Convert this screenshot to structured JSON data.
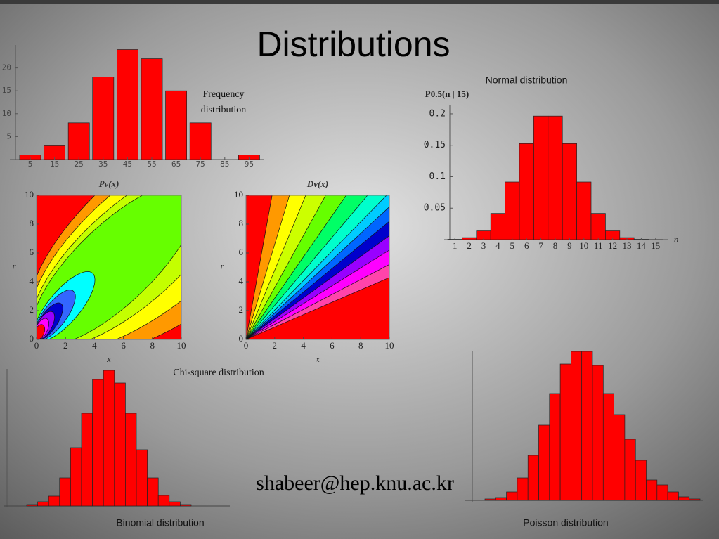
{
  "title": "Distributions",
  "email": "shabeer@hep.knu.ac.kr",
  "caption": "Chi-square distribution",
  "chart_data": [
    {
      "type": "bar",
      "annotation": "Frequency distribution",
      "categories": [
        "5",
        "15",
        "25",
        "35",
        "45",
        "55",
        "65",
        "75",
        "85",
        "95"
      ],
      "values": [
        1,
        3,
        8,
        18,
        24,
        22,
        15,
        8,
        0,
        1
      ],
      "color": "#ff0000",
      "ylim": [
        0,
        25
      ],
      "yticks": [
        5,
        10,
        15,
        20
      ]
    },
    {
      "type": "bar",
      "title": "Normal distribution",
      "ylabel": "P0.5(n | 15)",
      "xlabel": "n",
      "categories": [
        "1",
        "2",
        "3",
        "4",
        "5",
        "6",
        "7",
        "8",
        "9",
        "10",
        "11",
        "12",
        "13",
        "14",
        "15"
      ],
      "values": [
        0.0005,
        0.0032,
        0.0139,
        0.0417,
        0.0916,
        0.1527,
        0.1964,
        0.1964,
        0.1527,
        0.0916,
        0.0417,
        0.0139,
        0.0032,
        0.0005,
        3e-05
      ],
      "color": "#ff0000",
      "ylim": [
        0,
        0.21
      ],
      "yticks": [
        0.05,
        0.1,
        0.15,
        0.2
      ]
    },
    {
      "type": "contour",
      "title": "Pν(x)",
      "xlabel": "x",
      "ylabel": "r",
      "xlim": [
        0,
        10
      ],
      "ylim": [
        0,
        10
      ],
      "xticks": [
        0,
        2,
        4,
        6,
        8,
        10
      ],
      "yticks": [
        0,
        2,
        4,
        6,
        8,
        10
      ],
      "colors": [
        "#ff0000",
        "#ff9900",
        "#ffff00",
        "#c4ff00",
        "#66ff00",
        "#00ffff",
        "#3366ff",
        "#0000cc",
        "#9900ff",
        "#ff00ff",
        "#ff0000"
      ]
    },
    {
      "type": "contour",
      "title": "Dν(x)",
      "xlabel": "x",
      "ylabel": "r",
      "xlim": [
        0,
        10
      ],
      "ylim": [
        0,
        10
      ],
      "xticks": [
        0,
        2,
        4,
        6,
        8,
        10
      ],
      "yticks": [
        0,
        2,
        4,
        6,
        8,
        10
      ],
      "colors": [
        "#ff0000",
        "#ff9900",
        "#ffff00",
        "#ccff00",
        "#66ff00",
        "#00ff66",
        "#00ffcc",
        "#00ccff",
        "#0066ff",
        "#0000cc",
        "#9900ff",
        "#ff00ff",
        "#ff44aa",
        "#ff0000"
      ]
    },
    {
      "type": "bar",
      "title": "Binomial  distribution",
      "values": [
        2,
        6,
        14,
        40,
        83,
        132,
        180,
        193,
        175,
        132,
        80,
        40,
        15,
        6,
        2
      ],
      "color": "#ff0000",
      "ylim": [
        0,
        200
      ]
    },
    {
      "type": "bar",
      "title": "Poisson distribution",
      "values": [
        2,
        4,
        12,
        32,
        64,
        107,
        152,
        194,
        212,
        212,
        192,
        152,
        122,
        87,
        57,
        29,
        22,
        12,
        5,
        2
      ],
      "color": "#ff0000",
      "ylim": [
        0,
        220
      ]
    }
  ]
}
